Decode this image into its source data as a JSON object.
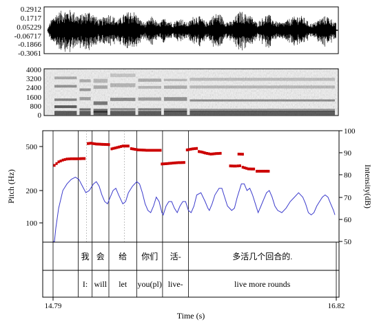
{
  "chart_data": [
    {
      "type": "line",
      "panel": "waveform",
      "y_ticks": [
        "0.2912",
        "0.1717",
        "0.05229",
        "-0.06717",
        "-0.1866",
        "-0.3061"
      ],
      "ylim": [
        -0.3061,
        0.2912
      ]
    },
    {
      "type": "heatmap",
      "panel": "spectrogram",
      "y_ticks": [
        "4000",
        "3200",
        "2400",
        "1600",
        "800",
        "0"
      ],
      "ylim": [
        0,
        4000
      ]
    },
    {
      "type": "line",
      "panel": "pitch-intensity",
      "xlabel": "Time (s)",
      "x_ticks": [
        "14.79",
        "16.82"
      ],
      "xlim": [
        14.79,
        16.82
      ],
      "ylabel": "Pitch (Hz)",
      "y_ticks": [
        "500",
        "200",
        "100"
      ],
      "ylim_log": [
        70,
        650
      ],
      "y2label": "Intensity(dB)",
      "y2_ticks": [
        "100",
        "90",
        "80",
        "70",
        "60",
        "50"
      ],
      "y2lim": [
        50,
        100
      ],
      "series": [
        {
          "kind": "pitch",
          "color": "#cc0000",
          "segments": [
            [
              [
                14.8,
                336
              ],
              [
                14.83,
                362
              ],
              [
                14.86,
                376
              ],
              [
                14.89,
                384
              ],
              [
                14.92,
                386
              ],
              [
                14.95,
                386
              ],
              [
                14.98,
                387
              ],
              [
                15.015,
                388
              ]
            ],
            [
              [
                15.04,
                532
              ],
              [
                15.06,
                536
              ],
              [
                15.1,
                527
              ],
              [
                15.15,
                523
              ],
              [
                15.19,
                521
              ]
            ],
            [
              [
                15.21,
                476
              ],
              [
                15.25,
                490
              ],
              [
                15.29,
                505
              ],
              [
                15.33,
                505
              ]
            ],
            [
              [
                15.35,
                478
              ],
              [
                15.4,
                466
              ],
              [
                15.46,
                462
              ],
              [
                15.52,
                462
              ],
              [
                15.56,
                462
              ]
            ],
            [
              [
                15.57,
                346
              ],
              [
                15.61,
                349
              ],
              [
                15.65,
                353
              ],
              [
                15.69,
                356
              ],
              [
                15.73,
                357
              ]
            ],
            [
              [
                15.75,
                466
              ],
              [
                15.79,
                476
              ],
              [
                15.82,
                480
              ]
            ],
            [
              [
                15.835,
                450
              ],
              [
                15.86,
                444
              ],
              [
                15.88,
                436
              ],
              [
                15.92,
                426
              ],
              [
                15.96,
                431
              ],
              [
                15.99,
                433
              ]
            ],
            [
              [
                16.06,
                332
              ],
              [
                16.1,
                331
              ],
              [
                16.13,
                333
              ]
            ],
            [
              [
                16.12,
                426
              ],
              [
                16.15,
                425
              ]
            ],
            [
              [
                16.15,
                323
              ],
              [
                16.19,
                312
              ],
              [
                16.23,
                311
              ]
            ],
            [
              [
                16.25,
                297
              ],
              [
                16.3,
                297
              ],
              [
                16.335,
                297
              ]
            ]
          ]
        },
        {
          "kind": "intensity",
          "color": "#3a3acc",
          "points": [
            [
              14.79,
              50
            ],
            [
              14.8,
              50
            ],
            [
              14.81,
              56
            ],
            [
              14.83,
              65
            ],
            [
              14.86,
              73
            ],
            [
              14.89,
              76
            ],
            [
              14.92,
              78
            ],
            [
              14.95,
              79
            ],
            [
              14.975,
              78
            ],
            [
              15.0,
              75
            ],
            [
              15.025,
              72
            ],
            [
              15.05,
              73
            ],
            [
              15.08,
              76
            ],
            [
              15.1,
              77
            ],
            [
              15.12,
              75
            ],
            [
              15.14,
              71
            ],
            [
              15.16,
              68
            ],
            [
              15.18,
              67
            ],
            [
              15.2,
              70
            ],
            [
              15.22,
              73
            ],
            [
              15.24,
              74
            ],
            [
              15.26,
              71
            ],
            [
              15.29,
              67
            ],
            [
              15.31,
              68
            ],
            [
              15.33,
              72
            ],
            [
              15.36,
              75
            ],
            [
              15.39,
              77
            ],
            [
              15.41,
              76
            ],
            [
              15.43,
              72
            ],
            [
              15.45,
              67
            ],
            [
              15.47,
              64
            ],
            [
              15.49,
              63
            ],
            [
              15.51,
              66
            ],
            [
              15.53,
              70
            ],
            [
              15.55,
              68
            ],
            [
              15.57,
              63
            ],
            [
              15.58,
              62
            ],
            [
              15.6,
              66
            ],
            [
              15.62,
              68
            ],
            [
              15.64,
              68
            ],
            [
              15.66,
              65
            ],
            [
              15.68,
              63
            ],
            [
              15.7,
              66
            ],
            [
              15.72,
              68
            ],
            [
              15.74,
              68
            ],
            [
              15.76,
              64
            ],
            [
              15.78,
              63
            ],
            [
              15.8,
              66
            ],
            [
              15.82,
              71
            ],
            [
              15.85,
              72
            ],
            [
              15.88,
              68
            ],
            [
              15.9,
              65
            ],
            [
              15.91,
              64
            ],
            [
              15.93,
              67
            ],
            [
              15.95,
              71
            ],
            [
              15.98,
              74
            ],
            [
              16.0,
              74
            ],
            [
              16.02,
              70
            ],
            [
              16.04,
              66
            ],
            [
              16.07,
              64
            ],
            [
              16.09,
              65
            ],
            [
              16.11,
              70
            ],
            [
              16.14,
              76
            ],
            [
              16.16,
              76
            ],
            [
              16.18,
              73
            ],
            [
              16.2,
              74
            ],
            [
              16.22,
              71
            ],
            [
              16.24,
              67
            ],
            [
              16.26,
              63
            ],
            [
              16.28,
              66
            ],
            [
              16.3,
              69
            ],
            [
              16.32,
              72
            ],
            [
              16.34,
              73
            ],
            [
              16.36,
              70
            ],
            [
              16.38,
              66
            ],
            [
              16.4,
              64
            ],
            [
              16.43,
              63
            ],
            [
              16.46,
              65
            ],
            [
              16.49,
              68
            ],
            [
              16.52,
              70
            ],
            [
              16.55,
              72
            ],
            [
              16.58,
              70
            ],
            [
              16.6,
              67
            ],
            [
              16.62,
              63
            ],
            [
              16.64,
              62
            ],
            [
              16.66,
              63
            ],
            [
              16.68,
              66
            ],
            [
              16.7,
              68
            ],
            [
              16.72,
              70
            ],
            [
              16.74,
              71
            ],
            [
              16.76,
              70
            ],
            [
              16.78,
              67
            ],
            [
              16.8,
              64
            ],
            [
              16.81,
              62
            ]
          ]
        }
      ],
      "boundaries": [
        14.79,
        14.97,
        15.07,
        15.19,
        15.39,
        15.575,
        15.76,
        16.82
      ]
    }
  ],
  "tiers": {
    "chinese": [
      {
        "start": 14.79,
        "end": 14.97,
        "text": ""
      },
      {
        "start": 14.97,
        "end": 15.07,
        "text": "我"
      },
      {
        "start": 15.07,
        "end": 15.19,
        "text": "会"
      },
      {
        "start": 15.19,
        "end": 15.39,
        "text": "给"
      },
      {
        "start": 15.39,
        "end": 15.575,
        "text": "你们"
      },
      {
        "start": 15.575,
        "end": 15.76,
        "text": "活-"
      },
      {
        "start": 15.76,
        "end": 16.82,
        "text": "多活几个回合的."
      }
    ],
    "english": [
      {
        "start": 14.79,
        "end": 14.97,
        "text": ""
      },
      {
        "start": 14.97,
        "end": 15.07,
        "text": "I:"
      },
      {
        "start": 15.07,
        "end": 15.19,
        "text": "will"
      },
      {
        "start": 15.19,
        "end": 15.39,
        "text": "let"
      },
      {
        "start": 15.39,
        "end": 15.575,
        "text": "you(pl)"
      },
      {
        "start": 15.575,
        "end": 15.76,
        "text": "live-"
      },
      {
        "start": 15.76,
        "end": 16.82,
        "text": "live more rounds"
      }
    ]
  }
}
